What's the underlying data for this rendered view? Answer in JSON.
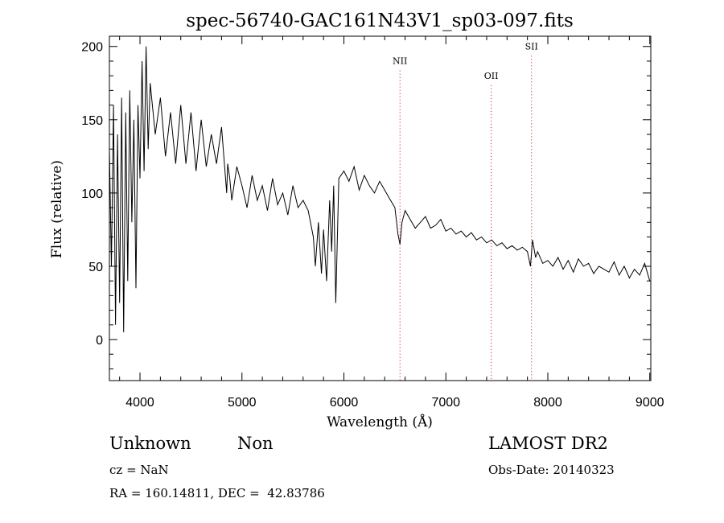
{
  "chart_data": {
    "type": "line",
    "title": "spec-56740-GAC161N43V1_sp03-097.fits",
    "xlabel": "Wavelength (Å)",
    "ylabel": "Flux (relative)",
    "xlim": [
      3700,
      9010
    ],
    "ylim": [
      -28,
      207
    ],
    "xticks": [
      4000,
      5000,
      6000,
      7000,
      8000,
      9000
    ],
    "yticks": [
      0,
      50,
      100,
      150,
      200
    ],
    "grid": false,
    "legend": "none",
    "line_color": "#000000",
    "marker_color": "#cc0000",
    "spectral_lines": [
      {
        "label": "NII",
        "x": 6550,
        "label_y": 188
      },
      {
        "label": "OII",
        "x": 7445,
        "label_y": 178
      },
      {
        "label": "SII",
        "x": 7840,
        "label_y": 198
      }
    ],
    "series": [
      {
        "x": [
          3700,
          3720,
          3740,
          3760,
          3780,
          3800,
          3820,
          3840,
          3860,
          3880,
          3900,
          3920,
          3940,
          3960,
          3980,
          4000,
          4020,
          4040,
          4060,
          4080,
          4100,
          4150,
          4200,
          4250,
          4300,
          4350,
          4400,
          4450,
          4500,
          4550,
          4600,
          4650,
          4700,
          4750,
          4800,
          4850,
          4860,
          4880,
          4900,
          4950,
          5000,
          5050,
          5100,
          5150,
          5200,
          5250,
          5300,
          5350,
          5400,
          5450,
          5500,
          5550,
          5600,
          5650,
          5700,
          5720,
          5750,
          5780,
          5800,
          5830,
          5860,
          5880,
          5900,
          5920,
          5950,
          6000,
          6050,
          6100,
          6150,
          6200,
          6250,
          6300,
          6350,
          6400,
          6450,
          6500,
          6530,
          6550,
          6570,
          6600,
          6650,
          6700,
          6750,
          6800,
          6850,
          6900,
          6950,
          7000,
          7050,
          7100,
          7150,
          7200,
          7250,
          7300,
          7350,
          7400,
          7450,
          7500,
          7550,
          7600,
          7650,
          7700,
          7750,
          7800,
          7830,
          7850,
          7880,
          7900,
          7950,
          8000,
          8050,
          8100,
          8150,
          8200,
          8250,
          8300,
          8350,
          8400,
          8450,
          8500,
          8550,
          8600,
          8650,
          8700,
          8750,
          8800,
          8850,
          8900,
          8950,
          9000
        ],
        "values": [
          130,
          50,
          160,
          10,
          140,
          25,
          165,
          5,
          155,
          40,
          170,
          80,
          150,
          35,
          160,
          110,
          190,
          115,
          200,
          130,
          175,
          140,
          165,
          125,
          155,
          120,
          160,
          120,
          155,
          115,
          150,
          118,
          140,
          120,
          145,
          100,
          120,
          110,
          95,
          118,
          105,
          90,
          112,
          95,
          105,
          88,
          110,
          92,
          100,
          85,
          105,
          90,
          95,
          88,
          70,
          50,
          80,
          45,
          75,
          40,
          95,
          60,
          105,
          25,
          110,
          115,
          108,
          118,
          102,
          112,
          105,
          100,
          108,
          102,
          96,
          90,
          72,
          65,
          80,
          88,
          82,
          76,
          80,
          84,
          76,
          78,
          82,
          74,
          76,
          72,
          74,
          70,
          73,
          68,
          70,
          66,
          68,
          64,
          66,
          62,
          64,
          61,
          63,
          60,
          50,
          68,
          56,
          60,
          52,
          54,
          50,
          56,
          48,
          54,
          46,
          55,
          50,
          52,
          45,
          50,
          48,
          46,
          53,
          44,
          50,
          42,
          48,
          44,
          52,
          40
        ]
      }
    ]
  },
  "info": {
    "object_class": "Unknown",
    "subclass": "Non",
    "survey": "LAMOST DR2",
    "cz": "cz = NaN",
    "obs_date": "Obs-Date: 20140323",
    "coords": "RA = 160.14811, DEC =  42.83786"
  }
}
